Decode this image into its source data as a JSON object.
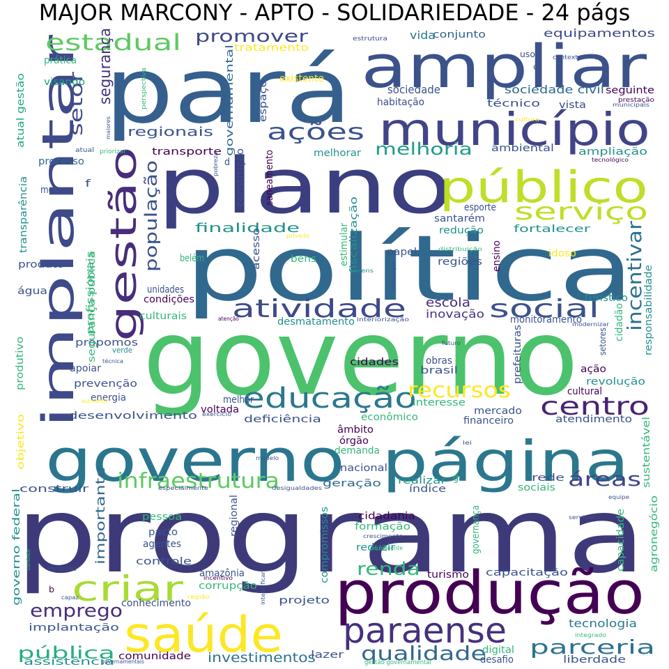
{
  "title": "MAJOR MARCONY - APTO - SOLIDARIEDADE - 24 págs",
  "palette": {
    "purple": "#440154",
    "indigo": "#3b528b",
    "blue": "#31688e",
    "teal": "#21918c",
    "green": "#35b779",
    "lime": "#90d743",
    "yellow": "#fde725"
  },
  "words": [
    {
      "text": "programa",
      "color": "#3e3a7a"
    },
    {
      "text": "governo",
      "color": "#4cc26c"
    },
    {
      "text": "política",
      "color": "#31688e"
    },
    {
      "text": "plano",
      "color": "#3b3f80"
    },
    {
      "text": "pará",
      "color": "#355f8d"
    },
    {
      "text": "governo",
      "color": "#2a768e"
    },
    {
      "text": "página",
      "color": "#2b788e"
    },
    {
      "text": "produção",
      "color": "#440154"
    },
    {
      "text": "ampliar",
      "color": "#3b528b"
    },
    {
      "text": "implantar",
      "color": "#3e4a89"
    },
    {
      "text": "saúde",
      "color": "#fde725"
    },
    {
      "text": "município",
      "color": "#414487"
    },
    {
      "text": "público",
      "color": "#bddf26"
    },
    {
      "text": "gestão",
      "color": "#472d7b"
    },
    {
      "text": "paraense",
      "color": "#46307e"
    },
    {
      "text": "criar",
      "color": "#a8db34"
    },
    {
      "text": "educação",
      "color": "#2a788e"
    },
    {
      "text": "atividade",
      "color": "#3e4a89"
    },
    {
      "text": "social",
      "color": "#3b528b"
    },
    {
      "text": "serviço",
      "color": "#bddf26"
    },
    {
      "text": "centro",
      "color": "#482374"
    },
    {
      "text": "infraestrutura",
      "color": "#5ec962"
    },
    {
      "text": "ações",
      "color": "#3b528b"
    },
    {
      "text": "estadual",
      "color": "#5ec962"
    },
    {
      "text": "recursos",
      "color": "#fde725"
    },
    {
      "text": "incentivar",
      "color": "#2c728e"
    },
    {
      "text": "áreas",
      "color": "#414487"
    },
    {
      "text": "parceria",
      "color": "#2c728e"
    },
    {
      "text": "qualidade",
      "color": "#31688e"
    },
    {
      "text": "promover",
      "color": "#3e4989"
    },
    {
      "text": "emprego",
      "color": "#472c7a"
    },
    {
      "text": "renda",
      "color": "#35b779"
    },
    {
      "text": "melhoria",
      "color": "#1f9e89"
    },
    {
      "text": "população",
      "color": "#3b528b"
    },
    {
      "text": "pública",
      "color": "#29af7f"
    },
    {
      "text": "setor",
      "color": "#3e4a89"
    },
    {
      "text": "segurança",
      "color": "#46337e"
    },
    {
      "text": "finalidade",
      "color": "#21918c"
    },
    {
      "text": "regionais",
      "color": "#3b528b"
    },
    {
      "text": "investimentos",
      "color": "#2c728e"
    },
    {
      "text": "importante",
      "color": "#31688e"
    },
    {
      "text": "tecnologia",
      "color": "#2a788e"
    },
    {
      "text": "sociedade civil",
      "color": "#31688e"
    },
    {
      "text": "escola",
      "color": "#482878"
    },
    {
      "text": "inovação",
      "color": "#46307e"
    },
    {
      "text": "sociedade",
      "color": "#39568c"
    },
    {
      "text": "vida",
      "color": "#2a788e"
    },
    {
      "text": "conjunto",
      "color": "#33638d"
    },
    {
      "text": "equipamentos",
      "color": "#3e4989"
    },
    {
      "text": "tratamento",
      "color": "#fde725"
    },
    {
      "text": "prática",
      "color": "#35b779"
    },
    {
      "text": "visando",
      "color": "#1f9e89"
    },
    {
      "text": "atual gestão",
      "color": "#22a884"
    },
    {
      "text": "governamental",
      "color": "#31688e"
    },
    {
      "text": "espaço",
      "color": "#3b528b"
    },
    {
      "text": "existente",
      "color": "#fde725"
    },
    {
      "text": "habitação",
      "color": "#3e4a89"
    },
    {
      "text": "técnico",
      "color": "#3b528b"
    },
    {
      "text": "vista",
      "color": "#3e4989"
    },
    {
      "text": "seguinte",
      "color": "#440154"
    },
    {
      "text": "transporte",
      "color": "#440154"
    },
    {
      "text": "ambiental",
      "color": "#3b528b"
    },
    {
      "text": "ampliação",
      "color": "#21918c"
    },
    {
      "text": "processo",
      "color": "#31688e"
    },
    {
      "text": "melhorar",
      "color": "#21918c"
    },
    {
      "text": "construção",
      "color": "#3b528b"
    },
    {
      "text": "saneamento",
      "color": "#440154"
    },
    {
      "text": "meta",
      "color": "#3b528b"
    },
    {
      "text": "transparência",
      "color": "#21918c"
    },
    {
      "text": "esporte",
      "color": "#3b528b"
    },
    {
      "text": "santarém",
      "color": "#3b528b"
    },
    {
      "text": "redução",
      "color": "#21918c"
    },
    {
      "text": "fortalecer",
      "color": "#21918c"
    },
    {
      "text": "papel",
      "color": "#3b528b"
    },
    {
      "text": "regiões",
      "color": "#3b528b"
    },
    {
      "text": "ensino",
      "color": "#440154"
    },
    {
      "text": "idoso",
      "color": "#fde725"
    },
    {
      "text": "produto",
      "color": "#3b528b"
    },
    {
      "text": "belém",
      "color": "#35b779"
    },
    {
      "text": "acesso",
      "color": "#3b528b"
    },
    {
      "text": "bens",
      "color": "#35b779"
    },
    {
      "text": "água",
      "color": "#3b528b"
    },
    {
      "text": "unidades",
      "color": "#3b528b"
    },
    {
      "text": "condições",
      "color": "#440154"
    },
    {
      "text": "culturais",
      "color": "#35b779"
    },
    {
      "text": "desmatamento",
      "color": "#21918c"
    },
    {
      "text": "monitoramento",
      "color": "#3b528b"
    },
    {
      "text": "propomos",
      "color": "#3b528b"
    },
    {
      "text": "apoiar",
      "color": "#3b528b"
    },
    {
      "text": "prevenção",
      "color": "#3b528b"
    },
    {
      "text": "energia",
      "color": "#3b528b"
    },
    {
      "text": "cidades",
      "color": "#440154"
    },
    {
      "text": "obras",
      "color": "#3b528b"
    },
    {
      "text": "brasil",
      "color": "#3b528b"
    },
    {
      "text": "ação",
      "color": "#440154"
    },
    {
      "text": "revolução",
      "color": "#21918c"
    },
    {
      "text": "cultural",
      "color": "#440154"
    },
    {
      "text": "desenvolvimento",
      "color": "#3b528b"
    },
    {
      "text": "melhor",
      "color": "#3b528b"
    },
    {
      "text": "voltada",
      "color": "#440154"
    },
    {
      "text": "deficiência",
      "color": "#3b528b"
    },
    {
      "text": "econômico",
      "color": "#35b779"
    },
    {
      "text": "interesse",
      "color": "#35b779"
    },
    {
      "text": "mercado",
      "color": "#3b528b"
    },
    {
      "text": "financeiro",
      "color": "#3b528b"
    },
    {
      "text": "atendimento",
      "color": "#3b528b"
    },
    {
      "text": "âmbito",
      "color": "#440154"
    },
    {
      "text": "órgão",
      "color": "#440154"
    },
    {
      "text": "demanda",
      "color": "#35b779"
    },
    {
      "text": "nacional",
      "color": "#3b528b"
    },
    {
      "text": "geração",
      "color": "#31688e"
    },
    {
      "text": "realizar",
      "color": "#21918c"
    },
    {
      "text": "índice",
      "color": "#3b528b"
    },
    {
      "text": "rede",
      "color": "#3b528b"
    },
    {
      "text": "sociais",
      "color": "#35b779"
    },
    {
      "text": "construir",
      "color": "#3b528b"
    },
    {
      "text": "cidadania",
      "color": "#440154"
    },
    {
      "text": "formação",
      "color": "#35b779"
    },
    {
      "text": "reduzir",
      "color": "#21918c"
    },
    {
      "text": "pessoa",
      "color": "#35b779"
    },
    {
      "text": "pacto",
      "color": "#3b528b"
    },
    {
      "text": "agentes",
      "color": "#3b528b"
    },
    {
      "text": "controle",
      "color": "#3b528b"
    },
    {
      "text": "amazônia",
      "color": "#3b528b"
    },
    {
      "text": "corrupção",
      "color": "#35b779"
    },
    {
      "text": "capacitação",
      "color": "#3b528b"
    },
    {
      "text": "turismo",
      "color": "#440154"
    },
    {
      "text": "conhecimento",
      "color": "#3b528b"
    },
    {
      "text": "projeto",
      "color": "#3b528b"
    },
    {
      "text": "implantação",
      "color": "#3b528b"
    },
    {
      "text": "comunidade",
      "color": "#440154"
    },
    {
      "text": "assistência",
      "color": "#21918c"
    },
    {
      "text": "lazer",
      "color": "#3b528b"
    },
    {
      "text": "digital",
      "color": "#35b779"
    },
    {
      "text": "desafio",
      "color": "#3b528b"
    },
    {
      "text": "liberdade",
      "color": "#3b528b"
    },
    {
      "text": "governo federal",
      "color": "#21918c"
    },
    {
      "text": "objetivo",
      "color": "#fde725"
    },
    {
      "text": "produtivo",
      "color": "#35b779"
    },
    {
      "text": "segurança pública",
      "color": "#35b779"
    },
    {
      "text": "profissionais",
      "color": "#35b779"
    },
    {
      "text": "estimular",
      "color": "#35b779"
    },
    {
      "text": "fiscalização",
      "color": "#21918c"
    },
    {
      "text": "turístico",
      "color": "#21918c"
    },
    {
      "text": "cidadão",
      "color": "#35b779"
    },
    {
      "text": "responsabilidade",
      "color": "#21918c"
    },
    {
      "text": "setores",
      "color": "#3b528b"
    },
    {
      "text": "prefeituras",
      "color": "#3b528b"
    },
    {
      "text": "sustentável",
      "color": "#35b779"
    },
    {
      "text": "agronegócio",
      "color": "#35b779"
    },
    {
      "text": "capacidade",
      "color": "#35b779"
    },
    {
      "text": "compromissos",
      "color": "#21918c"
    },
    {
      "text": "regional",
      "color": "#3b528b"
    },
    {
      "text": "governança",
      "color": "#35b779"
    },
    {
      "text": "uso",
      "color": "#3b528b"
    },
    {
      "text": "c",
      "color": "#3b528b"
    },
    {
      "text": "d",
      "color": "#3b528b"
    },
    {
      "text": "f",
      "color": "#3b528b"
    },
    {
      "text": "b",
      "color": "#440154"
    },
    {
      "text": "g",
      "color": "#35b779"
    },
    {
      "text": "estrutura",
      "color": "#3b528b"
    },
    {
      "text": "contexto",
      "color": "#3b528b"
    },
    {
      "text": "prestação",
      "color": "#440154"
    },
    {
      "text": "municipais",
      "color": "#3b528b"
    },
    {
      "text": "perspectiva",
      "color": "#35b779"
    },
    {
      "text": "cultura",
      "color": "#fde725"
    },
    {
      "text": "tecnológico",
      "color": "#440154"
    },
    {
      "text": "maiores",
      "color": "#3b528b"
    },
    {
      "text": "atual",
      "color": "#3b528b"
    },
    {
      "text": "priorizar",
      "color": "#35b779"
    },
    {
      "text": "pobreza",
      "color": "#3b528b"
    },
    {
      "text": "privado",
      "color": "#fde725"
    },
    {
      "text": "distribuição",
      "color": "#35b779"
    },
    {
      "text": "jovens",
      "color": "#21918c"
    },
    {
      "text": "diminuição",
      "color": "#3b528b"
    },
    {
      "text": "atenção",
      "color": "#440154"
    },
    {
      "text": "interiorização",
      "color": "#3b528b"
    },
    {
      "text": "modernizar",
      "color": "#3b528b"
    },
    {
      "text": "futuro",
      "color": "#3b528b"
    },
    {
      "text": "verde",
      "color": "#21918c"
    },
    {
      "text": "técnica",
      "color": "#3b528b"
    },
    {
      "text": "aumento",
      "color": "#fde725"
    },
    {
      "text": "exercício",
      "color": "#3b528b"
    },
    {
      "text": "lei",
      "color": "#3b528b"
    },
    {
      "text": "modelo",
      "color": "#3b528b"
    },
    {
      "text": "especialmente",
      "color": "#3b528b"
    },
    {
      "text": "desigualdades",
      "color": "#3b528b"
    },
    {
      "text": "equipe",
      "color": "#3b528b"
    },
    {
      "text": "servidor",
      "color": "#3b528b"
    },
    {
      "text": "crescimento",
      "color": "#3b528b"
    },
    {
      "text": "permanente",
      "color": "#35b779"
    },
    {
      "text": "combate",
      "color": "#35b779"
    },
    {
      "text": "inclusão",
      "color": "#3b528b"
    },
    {
      "text": "incentivo",
      "color": "#440154"
    },
    {
      "text": "capaz",
      "color": "#3b528b"
    },
    {
      "text": "região",
      "color": "#fde725"
    },
    {
      "text": "intensificar",
      "color": "#3b528b"
    },
    {
      "text": "integrado",
      "color": "#35b779"
    },
    {
      "text": "governamentais",
      "color": "#3b528b"
    },
    {
      "text": "gestão governamental",
      "color": "#35b779"
    }
  ]
}
